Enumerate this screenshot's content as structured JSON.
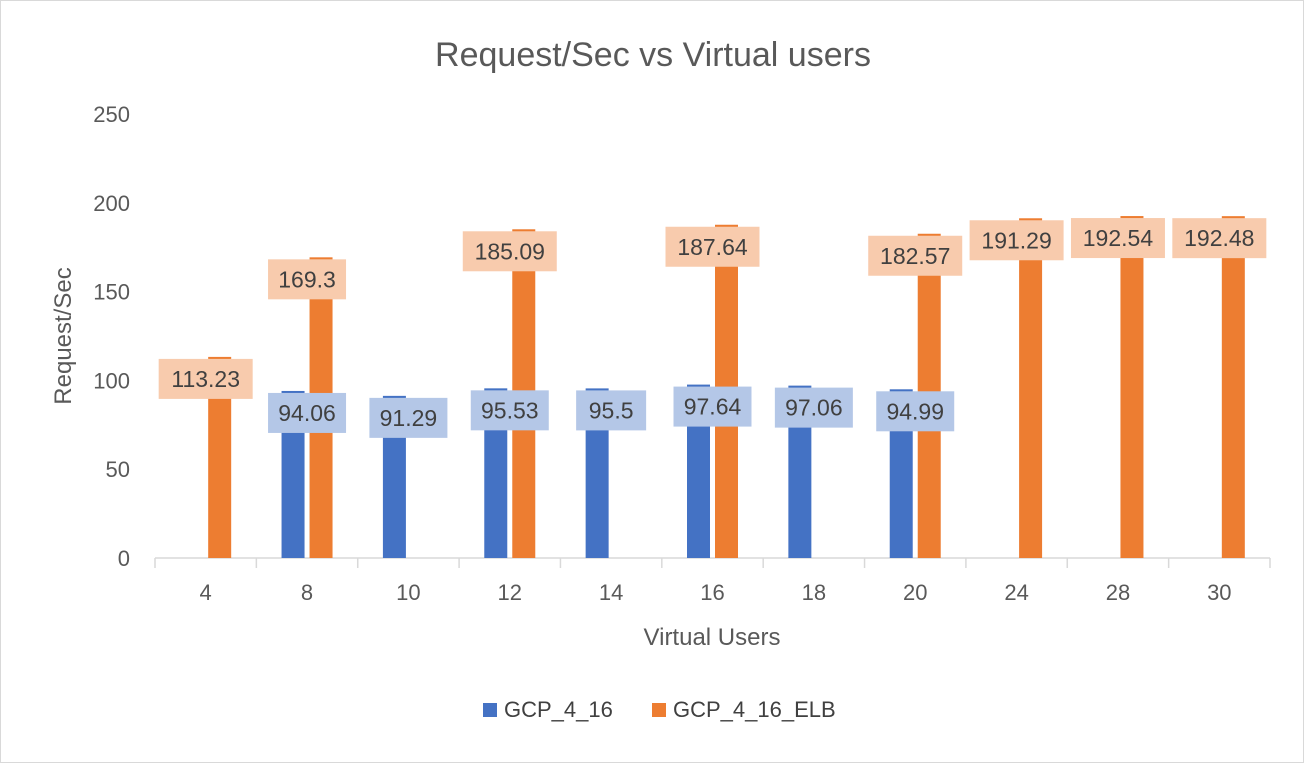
{
  "chart_data": {
    "type": "bar",
    "title": "Request/Sec vs Virtual users",
    "xlabel": "Virtual Users",
    "ylabel": "Request/Sec",
    "ylim": [
      0,
      250
    ],
    "yticks": [
      0,
      50,
      100,
      150,
      200,
      250
    ],
    "ytick_labels": [
      "0",
      "50",
      "100",
      "150",
      "200",
      "250"
    ],
    "grid": false,
    "legend_position": "bottom",
    "categories": [
      "4",
      "8",
      "10",
      "12",
      "14",
      "16",
      "18",
      "20",
      "24",
      "28",
      "30"
    ],
    "series": [
      {
        "name": "GCP_4_16",
        "color": "#4472C4",
        "label_bg": "#B4C7E7",
        "values": [
          null,
          94.06,
          91.29,
          95.53,
          95.5,
          97.64,
          97.06,
          94.99,
          null,
          null,
          null
        ],
        "labels": [
          null,
          "94.06",
          "91.29",
          "95.53",
          "95.5",
          "97.64",
          "97.06",
          "94.99",
          null,
          null,
          null
        ]
      },
      {
        "name": "GCP_4_16_ELB",
        "color": "#ED7D31",
        "label_bg": "#F8CBAD",
        "values": [
          113.23,
          169.3,
          null,
          185.09,
          null,
          187.64,
          null,
          182.57,
          191.29,
          192.54,
          192.48
        ],
        "labels": [
          "113.23",
          "169.3",
          null,
          "185.09",
          null,
          "187.64",
          null,
          "182.57",
          "191.29",
          "192.54",
          "192.48"
        ]
      }
    ]
  },
  "colors": {
    "axis": "#D9D9D9",
    "text": "#595959",
    "frame": "#D9D9D9"
  }
}
